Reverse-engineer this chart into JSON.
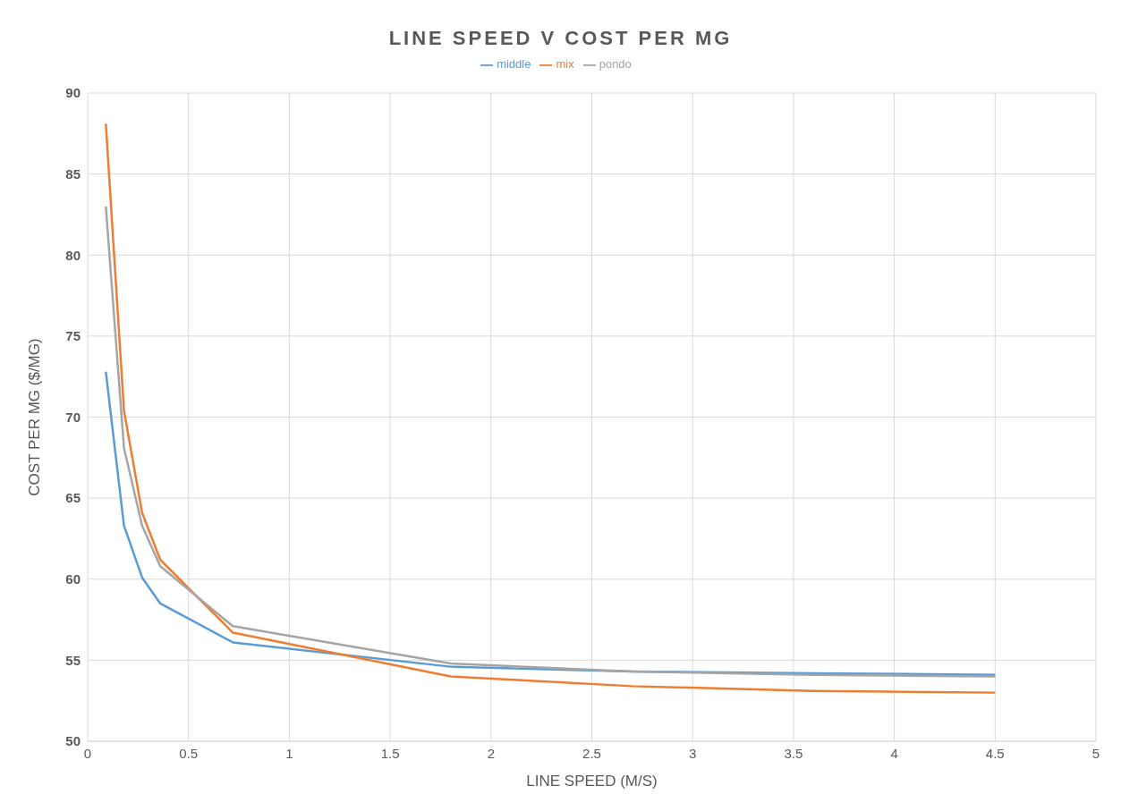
{
  "chart_data": {
    "type": "line",
    "title": "LINE SPEED V COST PER MG",
    "xlabel": "LINE SPEED (M/S)",
    "ylabel": "COST PER MG ($/MG)",
    "x": [
      0.09,
      0.18,
      0.27,
      0.36,
      0.72,
      1.8,
      2.7,
      3.6,
      4.5
    ],
    "series": [
      {
        "name": "middle",
        "color": "#5b9bd5",
        "values": [
          72.8,
          63.3,
          60.1,
          58.5,
          56.1,
          54.6,
          54.3,
          54.2,
          54.1
        ]
      },
      {
        "name": "mix",
        "color": "#ed7d31",
        "values": [
          88.1,
          70.4,
          64.1,
          61.2,
          56.7,
          54.0,
          53.4,
          53.1,
          53.0
        ]
      },
      {
        "name": "pondo",
        "color": "#a5a5a5",
        "values": [
          83.0,
          68.1,
          63.3,
          60.8,
          57.1,
          54.8,
          54.3,
          54.1,
          54.0
        ]
      }
    ],
    "xlim": [
      0,
      5
    ],
    "xticks": [
      0,
      0.5,
      1,
      1.5,
      2,
      2.5,
      3,
      3.5,
      4,
      4.5,
      5
    ],
    "ylim": [
      50,
      90
    ],
    "yticks": [
      50,
      55,
      60,
      65,
      70,
      75,
      80,
      85,
      90
    ],
    "grid": true,
    "legend": "top",
    "marker": "none",
    "line_style": "solid"
  }
}
